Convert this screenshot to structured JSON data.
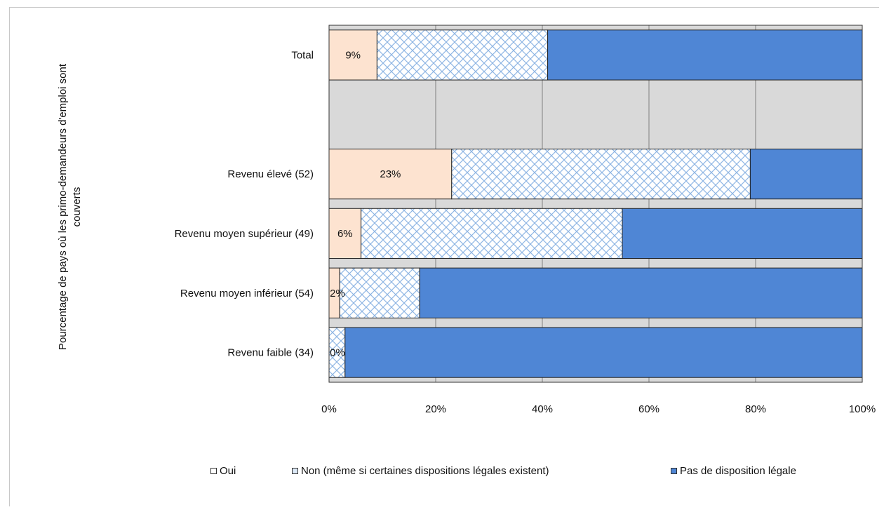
{
  "chart_data": {
    "type": "bar",
    "orientation": "horizontal",
    "stacked": true,
    "percent": true,
    "ylabel": "Pourcentage de pays où les primo-demandeurs d'emploi sont couverts",
    "categories": [
      "Total",
      "",
      "Revenu élevé (52)",
      "Revenu moyen supérieur (49)",
      "Revenu moyen inférieur (54)",
      "Revenu faible (34)"
    ],
    "series": [
      {
        "name": "Oui",
        "color": "#fde3d0",
        "pattern": "solid",
        "values": [
          9,
          null,
          23,
          6,
          2,
          0
        ]
      },
      {
        "name": "Non (même si certaines dispositions  légales existent)",
        "color": "#9ec3ea",
        "pattern": "crosshatch",
        "values": [
          32,
          null,
          56,
          49,
          15,
          3
        ]
      },
      {
        "name": "Pas de disposition  légale",
        "color": "#4f86d5",
        "pattern": "solid",
        "values": [
          59,
          null,
          21,
          45,
          83,
          97
        ]
      }
    ],
    "data_labels": [
      "9%",
      "",
      "23%",
      "6%",
      "2%",
      "0%"
    ],
    "xlim": [
      0,
      100
    ],
    "xticks": [
      "0%",
      "20%",
      "40%",
      "60%",
      "80%",
      "100%"
    ],
    "gridlines": "vertical",
    "plot_background": "#d9d9d9",
    "legend_position": "bottom"
  },
  "legend": [
    {
      "label": "Oui"
    },
    {
      "label": "Non (même si certaines dispositions  légales existent)"
    },
    {
      "label": "Pas de disposition  légale"
    }
  ]
}
